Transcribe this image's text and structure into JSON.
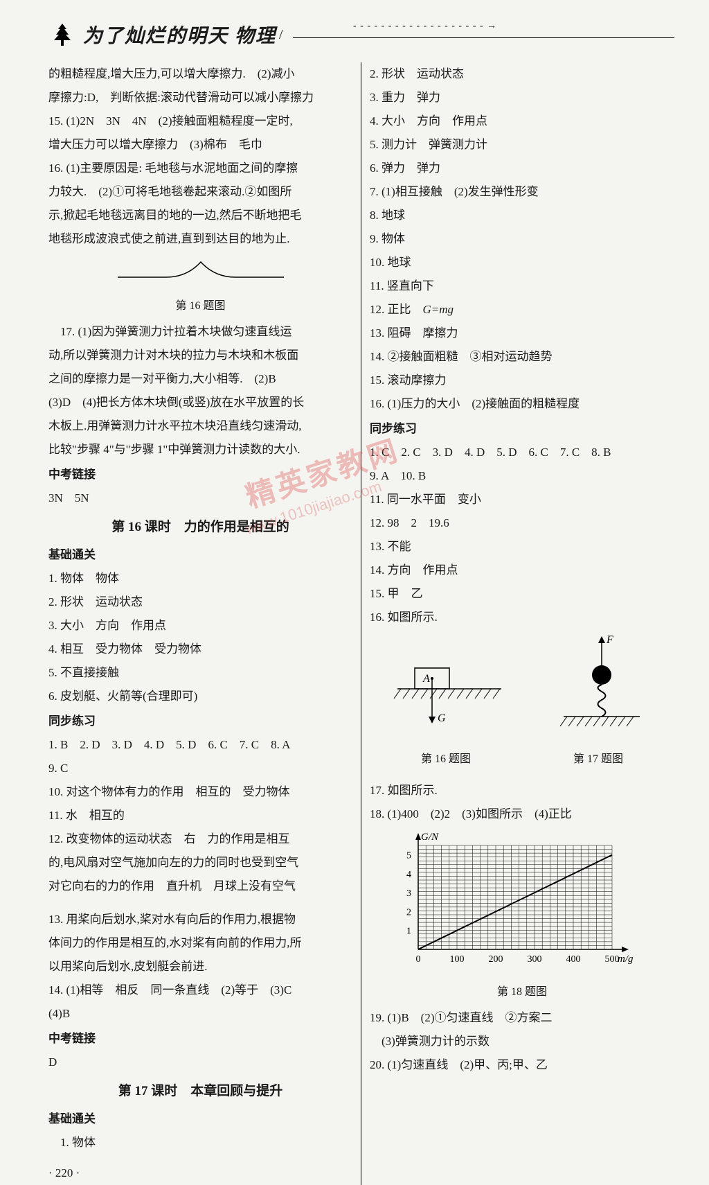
{
  "header": {
    "title": "为了灿烂的明天  物理",
    "dashes": "- - - - - - - - - - - - - - - - - - - →"
  },
  "left": {
    "p1": "的粗糙程度,增大压力,可以增大摩擦力.　(2)减小",
    "p2": "摩擦力:D,　判断依据:滚动代替滑动可以减小摩擦力",
    "p3": "15. (1)2N　3N　4N　(2)接触面粗糙程度一定时,",
    "p4": "增大压力可以增大摩擦力　(3)棉布　毛巾",
    "p5": "16. (1)主要原因是: 毛地毯与水泥地面之间的摩擦",
    "p6": "力较大.　(2)①可将毛地毯卷起来滚动.②如图所",
    "p7": "示,掀起毛地毯远离目的地的一边,然后不断地把毛",
    "p8": "地毯形成波浪式使之前进,直到到达目的地为止.",
    "fig16_caption": "第 16 题图",
    "p9": "　17. (1)因为弹簧测力计拉着木块做匀速直线运",
    "p10": "动,所以弹簧测力计对木块的拉力与木块和木板面",
    "p11": "之间的摩擦力是一对平衡力,大小相等.　(2)B",
    "p12": "(3)D　(4)把长方体木块倒(或竖)放在水平放置的长",
    "p13": "木板上.用弹簧测力计水平拉木块沿直线匀速滑动,",
    "p14": "比较\"步骤 4\"与\"步骤 1\"中弹簧测力计读数的大小.",
    "zhongkao1": "中考链接",
    "p15": "3N　5N",
    "lesson16": "第 16 课时　力的作用是相互的",
    "jichu1": "基础通关",
    "b1": "1. 物体　物体",
    "b2": "2. 形状　运动状态",
    "b3": "3. 大小　方向　作用点",
    "b4": "4. 相互　受力物体　受力物体",
    "b5": "5. 不直接接触",
    "b6": "6. 皮划艇、火箭等(合理即可)",
    "tongbu1": "同步练习",
    "t1": "1. B　2. D　3. D　4. D　5. D　6. C　7. C　8. A",
    "t2": "9. C",
    "t3": "10. 对这个物体有力的作用　相互的　受力物体",
    "t4": "11. 水　相互的",
    "t5": "12. 改变物体的运动状态　右　力的作用是相互",
    "t6": "的,电风扇对空气施加向左的力的同时也受到空气",
    "t7": "对它向右的力的作用　直升机　月球上没有空气",
    "t8": "13. 用桨向后划水,桨对水有向后的作用力,根据物",
    "t9": "体间力的作用是相互的,水对桨有向前的作用力,所",
    "t10": "以用桨向后划水,皮划艇会前进.",
    "t11": "14. (1)相等　相反　同一条直线　(2)等于　(3)C",
    "t12": "(4)B",
    "zhongkao2": "中考链接",
    "t13": "D",
    "lesson17": "第 17 课时　本章回顾与提升",
    "jichu2": "基础通关",
    "b7": "　1. 物体",
    "pagenum": "· 220 ·"
  },
  "right": {
    "r1": "2. 形状　运动状态",
    "r2": "3. 重力　弹力",
    "r3": "4. 大小　方向　作用点",
    "r4": "5. 测力计　弹簧测力计",
    "r5": "6. 弹力　弹力",
    "r6": "7. (1)相互接触　(2)发生弹性形变",
    "r7": "8. 地球",
    "r8": "9. 物体",
    "r9": "10. 地球",
    "r10": "11. 竖直向下",
    "r11_pre": "12. 正比　",
    "r11_formula": "G=mg",
    "r12": "13. 阻碍　摩擦力",
    "r13": "14. ②接触面粗糙　③相对运动趋势",
    "r14": "15. 滚动摩擦力",
    "r15": "16. (1)压力的大小　(2)接触面的粗糙程度",
    "tongbu2": "同步练习",
    "rt1": "1. C　2. C　3. D　4. D　5. D　6. C　7. C　8. B",
    "rt2": "9. A　10. B",
    "rt3": "11. 同一水平面　变小",
    "rt4": "12. 98　2　19.6",
    "rt5": "13. 不能",
    "rt6": "14. 方向　作用点",
    "rt7": "15. 甲　乙",
    "rt8": "16. 如图所示.",
    "fig16r_caption": "第 16 题图",
    "fig17_caption": "第 17 题图",
    "rt9": "17. 如图所示.",
    "rt10": "18. (1)400　(2)2　(3)如图所示　(4)正比",
    "fig18_caption": "第 18 题图",
    "rt11": "19. (1)B　(2)①匀速直线　②方案二",
    "rt12": "　(3)弹簧测力计的示数",
    "rt13": "20. (1)匀速直线　(2)甲、丙;甲、乙"
  },
  "watermark": {
    "text": "精英家教网",
    "url": "www.1010jiajiao.com"
  },
  "diagrams": {
    "fig16r": {
      "label_A": "A",
      "label_G": "G"
    },
    "fig17": {
      "label_F": "F"
    },
    "chart": {
      "ylabel": "G/N",
      "xlabel": "m/g",
      "xticks": [
        "0",
        "100",
        "200",
        "300",
        "400",
        "500"
      ],
      "yticks": [
        "1",
        "2",
        "3",
        "4",
        "5"
      ],
      "xmax": 500,
      "ymax": 5.5,
      "line_start_x": 0,
      "line_start_y": 0,
      "line_end_x": 500,
      "line_end_y": 5,
      "grid_color": "#000000",
      "bg_color": "#f4f4f0"
    }
  }
}
